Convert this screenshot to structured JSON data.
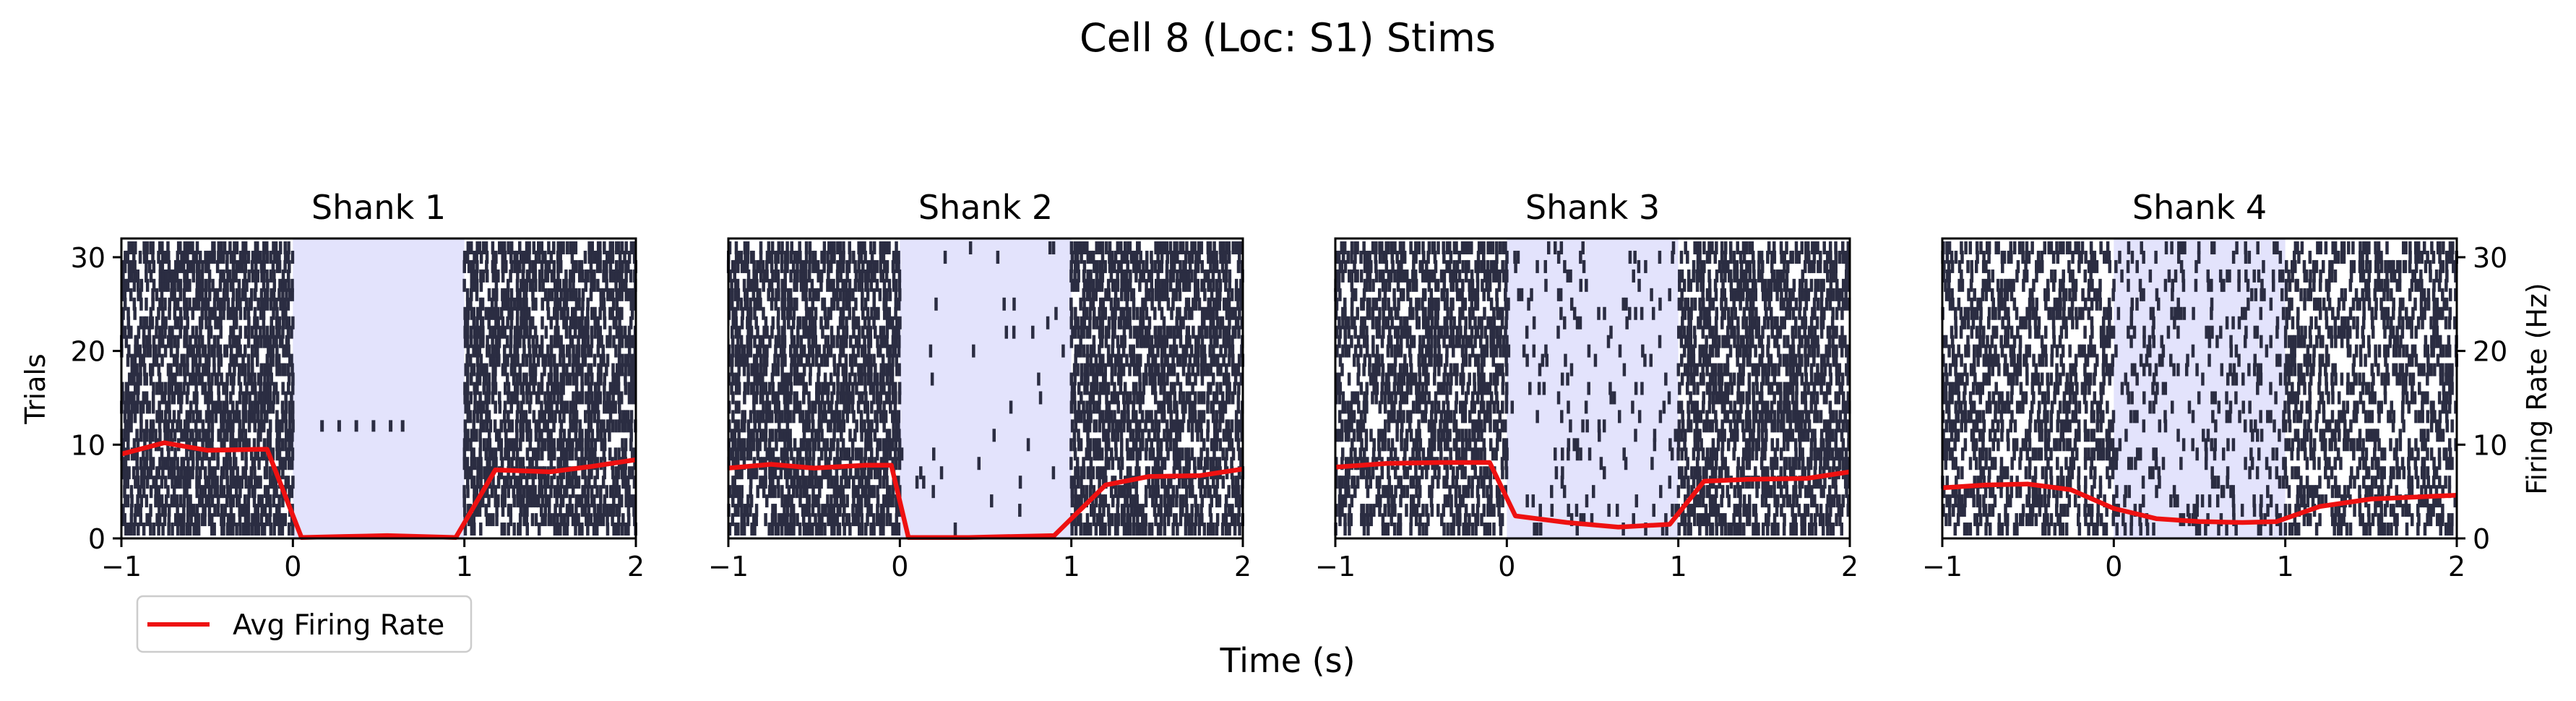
{
  "figure": {
    "title": "Cell 8 (Loc: S1) Stims",
    "xlabel": "Time (s)",
    "ylabel_left": "Trials",
    "ylabel_right": "Firing Rate (Hz)"
  },
  "legend": {
    "label": "Avg Firing Rate",
    "placement": "lower-left, below first panel"
  },
  "colors": {
    "raster": "#2b2d42",
    "stim_shade": "#e3e3fc",
    "rate_line": "#ee1111",
    "axes": "#000000"
  },
  "chart_data": [
    {
      "type": "raster",
      "title": "Shank 1",
      "xlim": [
        -1,
        2
      ],
      "ylim": [
        0,
        32
      ],
      "xticks": [
        "−1",
        "0",
        "1",
        "2"
      ],
      "yticks": [
        "0",
        "10",
        "20",
        "30"
      ],
      "stim_window": [
        0,
        1
      ],
      "n_trials": 31,
      "raster_density_outside_stim": 0.7,
      "raster_density_inside_stim": 0.0,
      "sparse_spikes_inside_stim": [
        {
          "trial": 12,
          "times": [
            0.17,
            0.27,
            0.37,
            0.47,
            0.57,
            0.64
          ]
        }
      ],
      "series": [
        {
          "name": "Avg Firing Rate",
          "x": [
            -1.0,
            -0.75,
            -0.5,
            -0.2,
            -0.15,
            0.05,
            0.3,
            0.55,
            0.95,
            1.18,
            1.5,
            1.75,
            2.0
          ],
          "y": [
            9,
            10.2,
            9.4,
            9.5,
            9.5,
            0.1,
            0.2,
            0.3,
            0.1,
            7.3,
            7.1,
            7.7,
            8.4
          ]
        }
      ]
    },
    {
      "type": "raster",
      "title": "Shank 2",
      "xlim": [
        -1,
        2
      ],
      "ylim": [
        0,
        32
      ],
      "xticks": [
        "−1",
        "0",
        "1",
        "2"
      ],
      "yticks": [],
      "stim_window": [
        0,
        1
      ],
      "n_trials": 31,
      "raster_density_outside_stim": 0.68,
      "raster_density_inside_stim": 0.02,
      "series": [
        {
          "name": "Avg Firing Rate",
          "x": [
            -1.0,
            -0.75,
            -0.5,
            -0.2,
            -0.05,
            0.05,
            0.4,
            0.9,
            1.2,
            1.45,
            1.75,
            2.0
          ],
          "y": [
            7.5,
            7.9,
            7.5,
            7.8,
            7.8,
            0.1,
            0.1,
            0.3,
            5.7,
            6.6,
            6.7,
            7.4
          ]
        }
      ]
    },
    {
      "type": "raster",
      "title": "Shank 3",
      "xlim": [
        -1,
        2
      ],
      "ylim": [
        0,
        32
      ],
      "xticks": [
        "−1",
        "0",
        "1",
        "2"
      ],
      "yticks": [],
      "stim_window": [
        0,
        1
      ],
      "n_trials": 31,
      "raster_density_outside_stim": 0.62,
      "raster_density_inside_stim": 0.1,
      "series": [
        {
          "name": "Avg Firing Rate",
          "x": [
            -1.0,
            -0.7,
            -0.4,
            -0.1,
            0.05,
            0.35,
            0.65,
            0.95,
            1.15,
            1.4,
            1.75,
            2.0
          ],
          "y": [
            7.6,
            8.0,
            8.1,
            8.1,
            2.4,
            1.7,
            1.2,
            1.5,
            6.1,
            6.3,
            6.4,
            7.1
          ]
        }
      ]
    },
    {
      "type": "raster",
      "title": "Shank 4",
      "xlim": [
        -1,
        2
      ],
      "ylim": [
        0,
        32
      ],
      "xticks": [
        "−1",
        "0",
        "1",
        "2"
      ],
      "yticks": [],
      "yticks_right": [
        "0",
        "10",
        "20",
        "30"
      ],
      "y2lim": [
        0,
        32
      ],
      "stim_window": [
        0,
        1
      ],
      "n_trials": 31,
      "raster_density_outside_stim": 0.5,
      "raster_density_inside_stim": 0.2,
      "series": [
        {
          "name": "Avg Firing Rate",
          "x": [
            -1.0,
            -0.75,
            -0.5,
            -0.25,
            0.0,
            0.25,
            0.5,
            0.75,
            0.95,
            1.2,
            1.5,
            1.75,
            2.0
          ],
          "y": [
            5.4,
            5.7,
            5.8,
            5.2,
            3.2,
            2.1,
            1.8,
            1.7,
            1.8,
            3.4,
            4.2,
            4.4,
            4.6
          ]
        }
      ]
    }
  ]
}
